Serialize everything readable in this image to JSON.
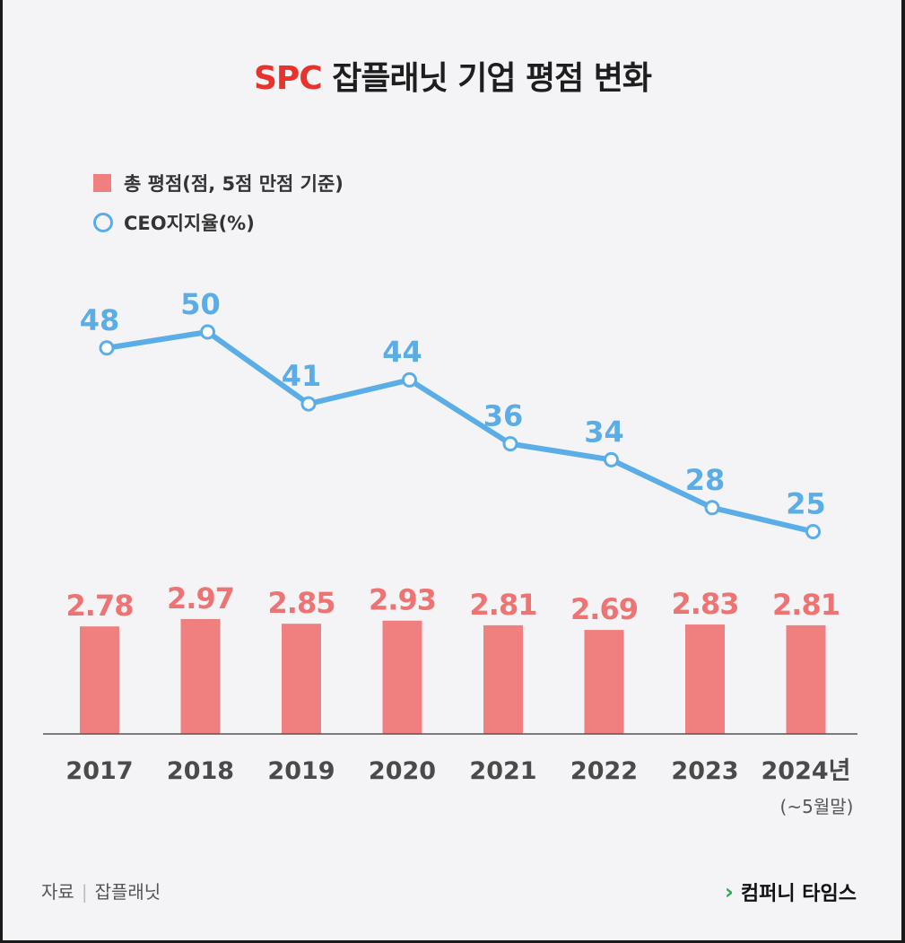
{
  "title": {
    "brand": "SPC",
    "rest": " 잡플래닛 기업 평점 변화"
  },
  "legend": {
    "bar_label": "총 평점(점, 5점 만점 기준)",
    "line_label": "CEO지지율(%)"
  },
  "colors": {
    "bar": "#f08080",
    "bar_label": "#ee7373",
    "line": "#5aade6",
    "brand": "#e8322b",
    "footer_brand_icon": "#2fa84f"
  },
  "chart_data": {
    "type": "bar+line",
    "categories": [
      "2017",
      "2018",
      "2019",
      "2020",
      "2021",
      "2022",
      "2023",
      "2024년"
    ],
    "category_note": "(~5월말)",
    "series": [
      {
        "name": "총 평점(점, 5점 만점 기준)",
        "type": "bar",
        "values": [
          2.78,
          2.97,
          2.85,
          2.93,
          2.81,
          2.69,
          2.83,
          2.81
        ],
        "labels": [
          "2.78",
          "2.97",
          "2.85",
          "2.93",
          "2.81",
          "2.69",
          "2.83",
          "2.81"
        ]
      },
      {
        "name": "CEO지지율(%)",
        "type": "line",
        "values": [
          48,
          50,
          41,
          44,
          36,
          34,
          28,
          25
        ],
        "labels": [
          "48",
          "50",
          "41",
          "44",
          "36",
          "34",
          "28",
          "25"
        ]
      }
    ]
  },
  "footer": {
    "source_label": "자료",
    "source_name": "잡플래닛",
    "brand": "컴퍼니 타임스",
    "brand_icon": "chevron-right-icon"
  }
}
